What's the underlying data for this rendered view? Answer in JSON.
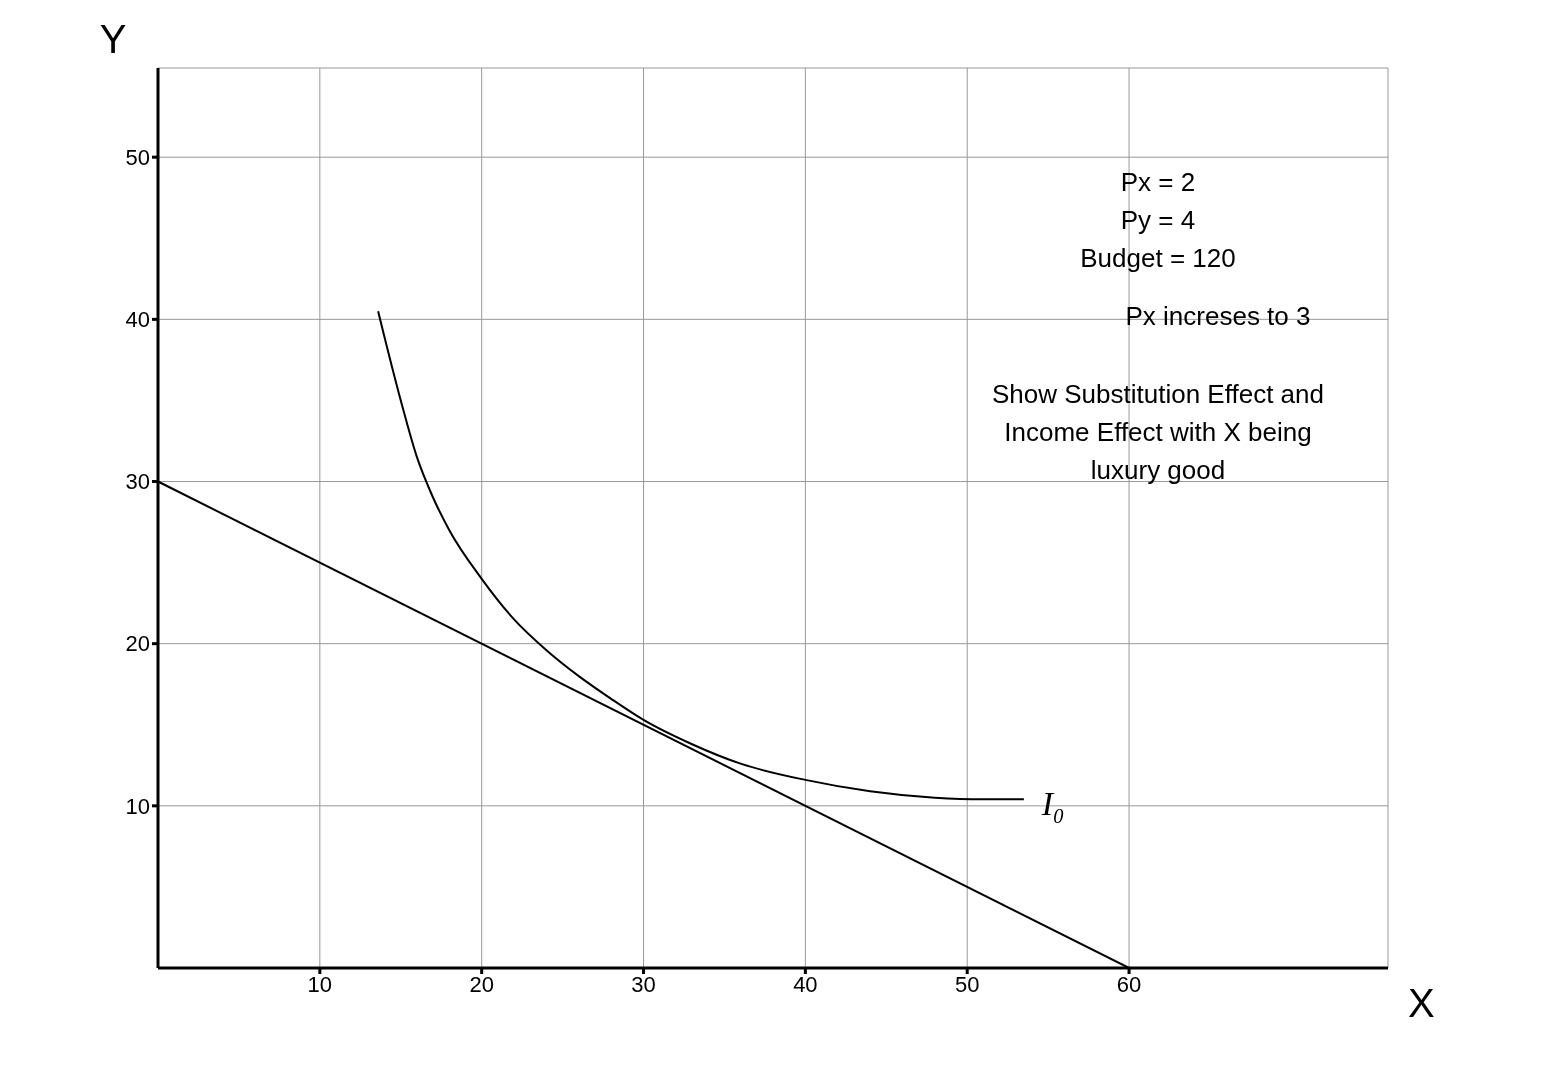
{
  "chart_data": {
    "type": "line",
    "xlabel": "X",
    "ylabel": "Y",
    "xlim": [
      0,
      76
    ],
    "ylim": [
      0,
      55.5
    ],
    "xticks": [
      10,
      20,
      30,
      40,
      50,
      60
    ],
    "yticks": [
      10,
      20,
      30,
      40,
      50
    ],
    "grid": true,
    "marker": "none",
    "line_style": "solid",
    "series": [
      {
        "color": "#000000",
        "x": [
          0,
          60
        ],
        "values": [
          30,
          0
        ]
      },
      {
        "color": "#000000",
        "x": [
          13.6,
          15,
          16,
          17,
          18,
          20,
          22,
          24,
          26,
          28,
          30,
          33,
          36,
          40,
          44,
          48,
          51,
          53.5
        ],
        "values": [
          40.5,
          35,
          31.5,
          29,
          27,
          24,
          21.5,
          19.6,
          18,
          16.6,
          15.3,
          13.8,
          12.6,
          11.6,
          10.9,
          10.5,
          10.4,
          10.4
        ]
      }
    ],
    "annotations": [
      "I$_{0}$",
      "Px = 2",
      "Py = 4",
      "Budget = 120",
      "Px  increses to 3",
      "Show Substitution Effect and Income Effect with X being luxury good"
    ]
  }
}
